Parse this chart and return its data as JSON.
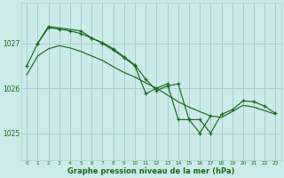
{
  "title": "Graphe pression niveau de la mer (hPa)",
  "bg_color": "#cceaea",
  "grid_color": "#aacccc",
  "line_color": "#1a6b1a",
  "xlim": [
    -0.5,
    23.5
  ],
  "ylim": [
    1024.4,
    1027.9
  ],
  "yticks": [
    1025,
    1026,
    1027
  ],
  "xticks": [
    0,
    1,
    2,
    3,
    4,
    5,
    6,
    7,
    8,
    9,
    10,
    11,
    12,
    13,
    14,
    15,
    16,
    17,
    18,
    19,
    20,
    21,
    22,
    23
  ],
  "series1": [
    1026.3,
    1026.72,
    1026.88,
    1026.95,
    1026.9,
    1026.82,
    1026.72,
    1026.62,
    1026.48,
    1026.35,
    1026.25,
    1026.12,
    1026.0,
    1025.85,
    1025.7,
    1025.58,
    1025.48,
    1025.38,
    1025.35,
    1025.48,
    1025.62,
    1025.58,
    1025.5,
    1025.42
  ],
  "series2": [
    1026.5,
    1027.0,
    1027.35,
    1027.32,
    1027.28,
    1027.22,
    1027.12,
    1027.02,
    1026.88,
    1026.7,
    1026.52,
    1026.2,
    1025.95,
    1026.05,
    1026.1,
    1025.3,
    1025.3,
    1025.0,
    1025.42,
    1025.52,
    1025.72,
    1025.7,
    1025.6,
    1025.44
  ],
  "series3_x": [
    1,
    2,
    5,
    6,
    7,
    8,
    9,
    10,
    11,
    12,
    13,
    14,
    15,
    16,
    17
  ],
  "series3_y": [
    1027.0,
    1027.38,
    1027.28,
    1027.12,
    1027.0,
    1026.85,
    1026.68,
    1026.5,
    1025.88,
    1026.0,
    1026.1,
    1025.3,
    1025.3,
    1025.0,
    1025.38
  ]
}
